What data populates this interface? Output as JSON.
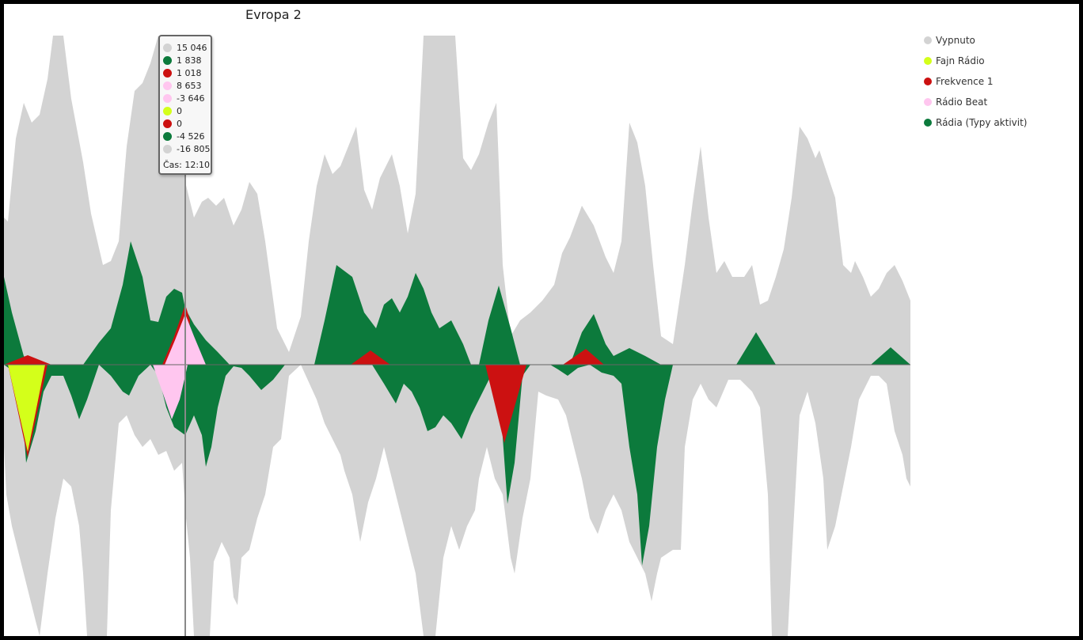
{
  "chart_data": {
    "type": "area",
    "title": "Evropa 2",
    "xlabel": "",
    "ylabel": "",
    "series": [
      {
        "name": "Vypnuto",
        "color": "#d3d3d3"
      },
      {
        "name": "Fajn Rádio",
        "color": "#d4ff1a"
      },
      {
        "name": "Frekvence 1",
        "color": "#cc1111"
      },
      {
        "name": "Rádio Beat",
        "color": "#ffc6ef"
      },
      {
        "name": "Rádia (Typy aktivit)",
        "color": "#0c7a3c"
      }
    ],
    "tooltip": {
      "rows": [
        {
          "value": "15 046",
          "color": "#d3d3d3"
        },
        {
          "value": "1 838",
          "color": "#0c7a3c"
        },
        {
          "value": "1 018",
          "color": "#cc1111"
        },
        {
          "value": "8 653",
          "color": "#ffc6ef"
        },
        {
          "value": "-3 646",
          "color": "#ffc6ef"
        },
        {
          "value": "0",
          "color": "#d4ff1a"
        },
        {
          "value": "0",
          "color": "#cc1111"
        },
        {
          "value": "-4 526",
          "color": "#0c7a3c"
        },
        {
          "value": "-16 805",
          "color": "#d3d3d3"
        }
      ],
      "time_label": "Čas: 12:10"
    }
  }
}
